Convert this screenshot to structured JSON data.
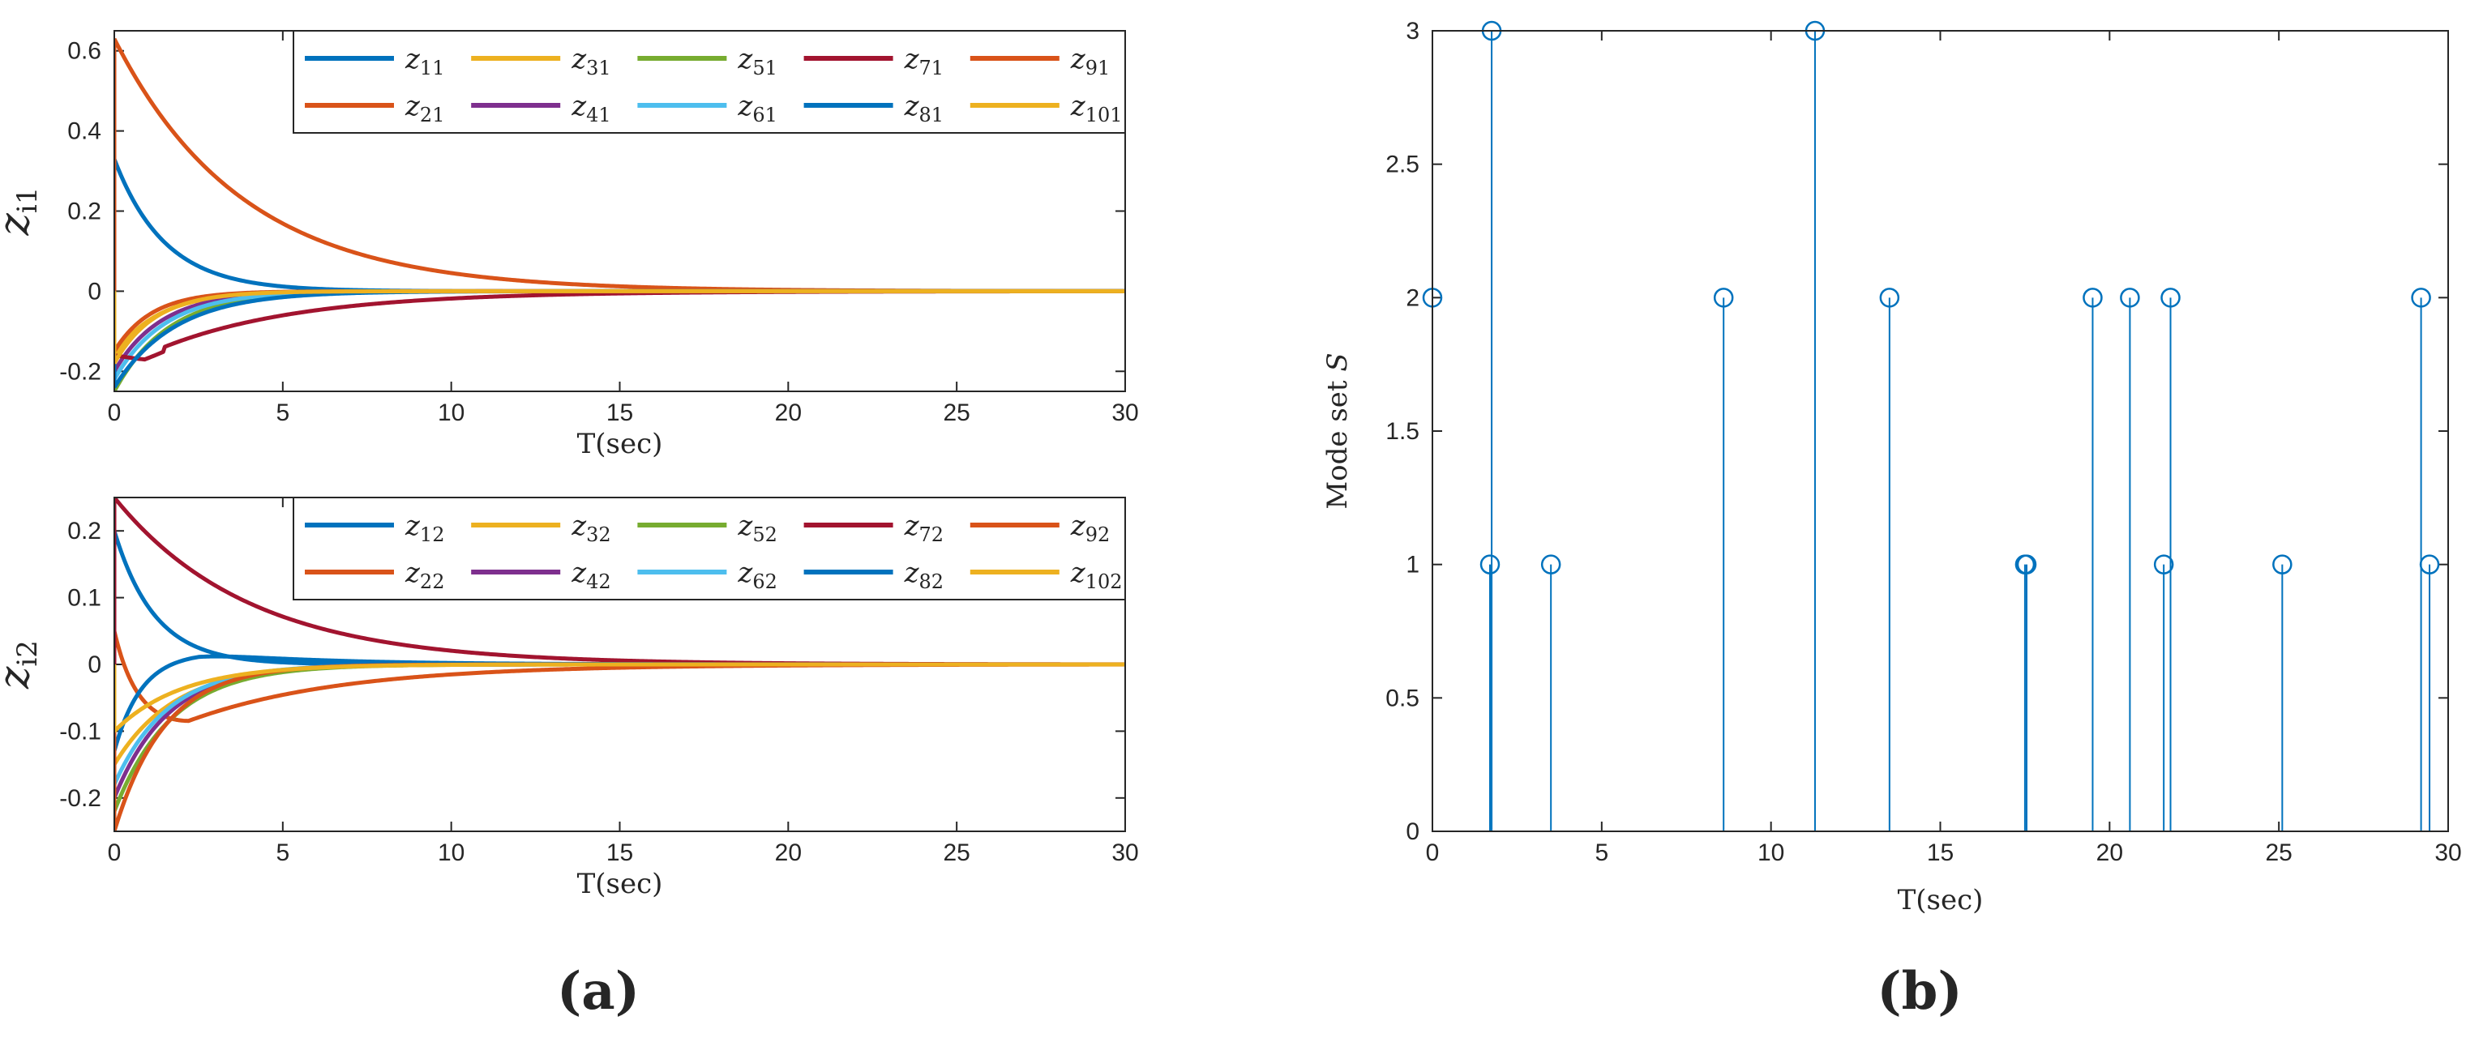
{
  "figure": {
    "caption_a": "(a)",
    "caption_b": "(b)"
  },
  "colors": [
    "#0072BD",
    "#D95319",
    "#EDB120",
    "#7E2F8E",
    "#77AC30",
    "#4DBEEE",
    "#A2142F"
  ],
  "chart_data": [
    {
      "id": "zi1",
      "type": "line",
      "title": "",
      "xlabel": "T(sec)",
      "ylabel": {
        "base": "z",
        "sub": "i1"
      },
      "xlim": [
        0,
        30
      ],
      "ylim": [
        -0.25,
        0.65
      ],
      "xticks": [
        0,
        5,
        10,
        15,
        20,
        25,
        30
      ],
      "xtick_labels": [
        "0",
        "5",
        "10",
        "15",
        "20",
        "25",
        "30"
      ],
      "yticks": [
        -0.2,
        0,
        0.2,
        0.4,
        0.6
      ],
      "ytick_labels": [
        "-0.2",
        "0",
        "0.2",
        "0.4",
        "0.6"
      ],
      "legend_position": "top-right",
      "legend_columns": 5,
      "series": [
        {
          "name": "z11",
          "base": "z",
          "sub": "11",
          "color": "#0072BD",
          "y0": 0.33,
          "tau": 1.5,
          "peak": 0.0
        },
        {
          "name": "z21",
          "base": "z",
          "sub": "21",
          "color": "#D95319",
          "y0": 0.63,
          "tau": 3.8,
          "peak": 0.0
        },
        {
          "name": "z31",
          "base": "z",
          "sub": "31",
          "color": "#EDB120",
          "y0": -0.16,
          "tau": 1.3,
          "peak": 0.0
        },
        {
          "name": "z41",
          "base": "z",
          "sub": "41",
          "color": "#7E2F8E",
          "y0": -0.2,
          "tau": 1.4,
          "peak": 0.0
        },
        {
          "name": "z51",
          "base": "z",
          "sub": "51",
          "color": "#77AC30",
          "y0": -0.25,
          "tau": 1.6,
          "peak": 0.0
        },
        {
          "name": "z61",
          "base": "z",
          "sub": "61",
          "color": "#4DBEEE",
          "y0": -0.22,
          "tau": 1.5,
          "peak": 0.0
        },
        {
          "name": "z71",
          "base": "z",
          "sub": "71",
          "color": "#A2142F",
          "y0": -0.16,
          "tau": 4.2,
          "peak": 1.5
        },
        {
          "name": "z81",
          "base": "z",
          "sub": "81",
          "color": "#0072BD",
          "y0": -0.24,
          "tau": 1.8,
          "peak": 0.0
        },
        {
          "name": "z91",
          "base": "z",
          "sub": "91",
          "color": "#D95319",
          "y0": -0.15,
          "tau": 1.1,
          "peak": 0.0
        },
        {
          "name": "z101",
          "base": "z",
          "sub": "101",
          "color": "#EDB120",
          "y0": -0.18,
          "tau": 1.2,
          "peak": 0.0
        }
      ]
    },
    {
      "id": "zi2",
      "type": "line",
      "title": "",
      "xlabel": "T(sec)",
      "ylabel": {
        "base": "z",
        "sub": "i2"
      },
      "xlim": [
        0,
        30
      ],
      "ylim": [
        -0.25,
        0.25
      ],
      "xticks": [
        0,
        5,
        10,
        15,
        20,
        25,
        30
      ],
      "xtick_labels": [
        "0",
        "5",
        "10",
        "15",
        "20",
        "25",
        "30"
      ],
      "yticks": [
        -0.2,
        -0.1,
        0,
        0.1,
        0.2
      ],
      "ytick_labels": [
        "-0.2",
        "-0.1",
        "0",
        "0.1",
        "0.2"
      ],
      "legend_position": "top-right",
      "legend_columns": 5,
      "series": [
        {
          "name": "z12",
          "base": "z",
          "sub": "12",
          "color": "#0072BD",
          "y0": 0.2,
          "tau": 1.2,
          "peak": 0.0
        },
        {
          "name": "z22",
          "base": "z",
          "sub": "22",
          "color": "#D95319",
          "y0": 0.05,
          "tau": 4.5,
          "peak": 2.2
        },
        {
          "name": "z32",
          "base": "z",
          "sub": "32",
          "color": "#EDB120",
          "y0": -0.15,
          "tau": 1.8,
          "peak": 0.0
        },
        {
          "name": "z42",
          "base": "z",
          "sub": "42",
          "color": "#7E2F8E",
          "y0": -0.2,
          "tau": 1.6,
          "peak": 0.0
        },
        {
          "name": "z52",
          "base": "z",
          "sub": "52",
          "color": "#77AC30",
          "y0": -0.22,
          "tau": 1.7,
          "peak": 0.0
        },
        {
          "name": "z62",
          "base": "z",
          "sub": "62",
          "color": "#4DBEEE",
          "y0": -0.18,
          "tau": 1.6,
          "peak": 0.0
        },
        {
          "name": "z72",
          "base": "z",
          "sub": "72",
          "color": "#A2142F",
          "y0": 0.25,
          "tau": 4.0,
          "peak": 0.0
        },
        {
          "name": "z82",
          "base": "z",
          "sub": "82",
          "color": "#0072BD",
          "y0": -0.13,
          "tau": 0.8,
          "peak": 0.0,
          "overshoot": 0.018
        },
        {
          "name": "z92",
          "base": "z",
          "sub": "92",
          "color": "#D95319",
          "y0": -0.25,
          "tau": 1.5,
          "peak": 0.0
        },
        {
          "name": "z102",
          "base": "z",
          "sub": "102",
          "color": "#EDB120",
          "y0": -0.1,
          "tau": 2.0,
          "peak": 0.0
        }
      ]
    },
    {
      "id": "mode",
      "type": "stem",
      "title": "",
      "xlabel": "T(sec)",
      "ylabel": {
        "text": "Mode set ",
        "italic": "S"
      },
      "xlim": [
        0,
        30
      ],
      "ylim": [
        0,
        3
      ],
      "xticks": [
        0,
        5,
        10,
        15,
        20,
        25,
        30
      ],
      "xtick_labels": [
        "0",
        "5",
        "10",
        "15",
        "20",
        "25",
        "30"
      ],
      "yticks": [
        0,
        0.5,
        1,
        1.5,
        2,
        2.5,
        3
      ],
      "ytick_labels": [
        "0",
        "0.5",
        "1",
        "1.5",
        "2",
        "2.5",
        "3"
      ],
      "color": "#0072BD",
      "x": [
        0.0,
        1.7,
        1.75,
        3.5,
        8.6,
        11.3,
        13.5,
        17.5,
        17.55,
        19.5,
        20.6,
        21.6,
        21.8,
        25.1,
        29.2,
        29.45
      ],
      "values": [
        2,
        1,
        3,
        1,
        2,
        3,
        2,
        1,
        1,
        2,
        2,
        1,
        2,
        1,
        2,
        1
      ]
    }
  ]
}
